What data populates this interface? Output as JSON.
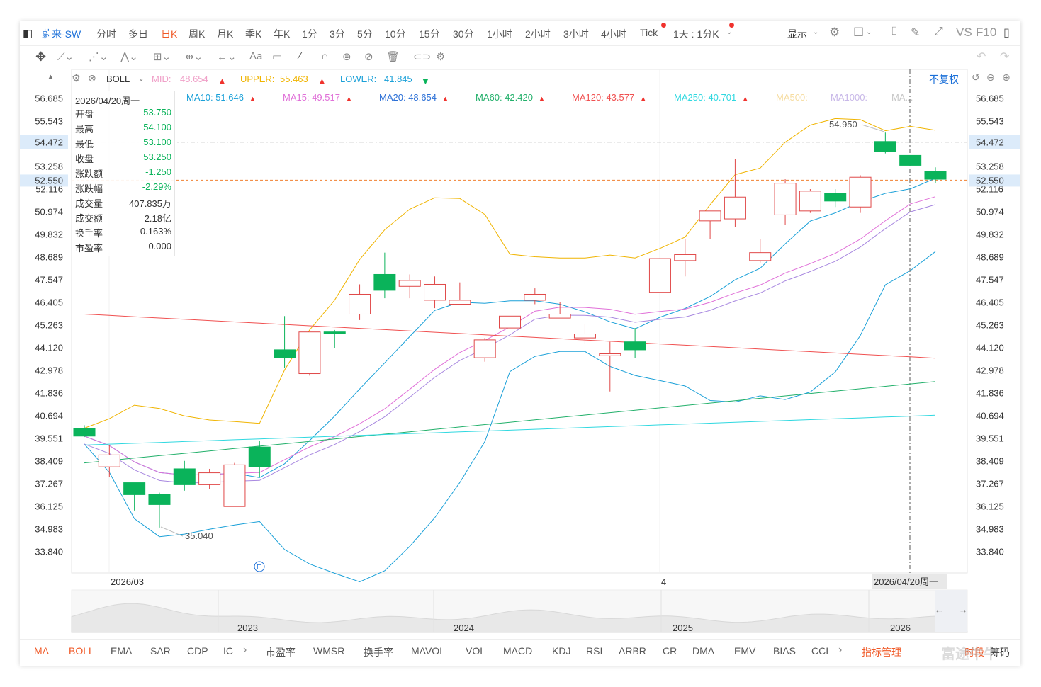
{
  "toolbar": {
    "stock_name": "蔚来-SW",
    "tabs": [
      "分时",
      "多日",
      "日K",
      "周K",
      "月K",
      "季K",
      "年K",
      "1分",
      "3分",
      "5分",
      "10分",
      "15分",
      "30分",
      "1小时",
      "2小时",
      "3小时",
      "4小时",
      "Tick"
    ],
    "active_tab": "日K",
    "range_select": "1天 : 1分K",
    "display_label": "显示",
    "vs_label": "VS",
    "f10_label": "F10"
  },
  "indicator_row": {
    "name": "BOLL",
    "mid_label": "MID:",
    "mid_value": "48.654",
    "upper_label": "UPPER:",
    "upper_value": "55.463",
    "lower_label": "LOWER:",
    "lower_value": "41.845",
    "adjust_label": "不复权"
  },
  "ma_legend": [
    {
      "label": "MA10:",
      "value": "51.646",
      "color": "#1aa0d8",
      "arrow": "up"
    },
    {
      "label": "MA15:",
      "value": "49.517",
      "color": "#e070d8",
      "arrow": "up"
    },
    {
      "label": "MA20:",
      "value": "48.654",
      "color": "#2b6fd6",
      "arrow": "up"
    },
    {
      "label": "MA60:",
      "value": "42.420",
      "color": "#23b06b",
      "arrow": "up"
    },
    {
      "label": "MA120:",
      "value": "43.577",
      "color": "#f05050",
      "arrow": "up"
    },
    {
      "label": "MA250:",
      "value": "40.701",
      "color": "#2fd8e0",
      "arrow": "up"
    },
    {
      "label": "MA500:",
      "value": "",
      "color": "#f6dca0",
      "arrow": ""
    },
    {
      "label": "MA1000:",
      "value": "",
      "color": "#c8b8e8",
      "arrow": ""
    },
    {
      "label": "MA...",
      "value": "",
      "color": "#c8c8c8",
      "arrow": ""
    }
  ],
  "info_panel": {
    "date": "2026/04/20周一",
    "rows": [
      {
        "k": "开盘",
        "v": "53.750",
        "c": "#0ab35a"
      },
      {
        "k": "最高",
        "v": "54.100",
        "c": "#0ab35a"
      },
      {
        "k": "最低",
        "v": "53.100",
        "c": "#0ab35a"
      },
      {
        "k": "收盘",
        "v": "53.250",
        "c": "#0ab35a"
      },
      {
        "k": "涨跌额",
        "v": "-1.250",
        "c": "#0ab35a"
      },
      {
        "k": "涨跌幅",
        "v": "-2.29%",
        "c": "#0ab35a"
      },
      {
        "k": "成交量",
        "v": "407.835万",
        "c": "#333333"
      },
      {
        "k": "成交额",
        "v": "2.18亿",
        "c": "#333333"
      },
      {
        "k": "换手率",
        "v": "0.163%",
        "c": "#333333"
      },
      {
        "k": "市盈率",
        "v": "0.000",
        "c": "#333333"
      }
    ]
  },
  "chart_data": {
    "type": "candlestick",
    "y_ticks": [
      "56.685",
      "55.543",
      "54.472",
      "53.258",
      "52.116",
      "50.974",
      "49.832",
      "48.689",
      "47.547",
      "46.405",
      "45.263",
      "44.120",
      "42.978",
      "41.836",
      "40.694",
      "39.551",
      "38.409",
      "37.267",
      "36.125",
      "34.983",
      "33.840"
    ],
    "ylim": [
      33.84,
      56.685
    ],
    "crosshair_value": "54.472",
    "last_price": "52.550",
    "x_labels": [
      "2026/03",
      "4"
    ],
    "crosshair_date": "2026/04/20周一",
    "annotations": [
      {
        "text": "54.950",
        "type": "high"
      },
      {
        "text": "35.040",
        "type": "low"
      }
    ],
    "candles": [
      {
        "o": 40.05,
        "h": 40.2,
        "c": 39.65,
        "l": 39.6
      },
      {
        "o": 38.1,
        "h": 39.2,
        "c": 38.7,
        "l": 37.6
      },
      {
        "o": 37.3,
        "h": 37.3,
        "c": 36.7,
        "l": 35.9
      },
      {
        "o": 36.7,
        "h": 36.8,
        "c": 36.2,
        "l": 35.04
      },
      {
        "o": 38.0,
        "h": 38.4,
        "c": 37.2,
        "l": 36.9
      },
      {
        "o": 37.2,
        "h": 38.0,
        "c": 37.8,
        "l": 37.0
      },
      {
        "o": 36.1,
        "h": 38.3,
        "c": 38.2,
        "l": 36.1
      },
      {
        "o": 39.1,
        "h": 39.4,
        "c": 38.1,
        "l": 37.6
      },
      {
        "o": 44.0,
        "h": 45.7,
        "c": 43.6,
        "l": 43.1
      },
      {
        "o": 42.8,
        "h": 44.9,
        "c": 44.9,
        "l": 42.7
      },
      {
        "o": 44.9,
        "h": 45.0,
        "c": 44.8,
        "l": 44.1
      },
      {
        "o": 45.8,
        "h": 47.3,
        "c": 46.8,
        "l": 45.5
      },
      {
        "o": 47.8,
        "h": 48.9,
        "c": 47.0,
        "l": 46.6
      },
      {
        "o": 47.2,
        "h": 47.8,
        "c": 47.5,
        "l": 46.6
      },
      {
        "o": 46.5,
        "h": 47.7,
        "c": 47.3,
        "l": 46.1
      },
      {
        "o": 46.3,
        "h": 47.4,
        "c": 46.5,
        "l": 46.3
      },
      {
        "o": 43.6,
        "h": 44.6,
        "c": 44.5,
        "l": 43.4
      },
      {
        "o": 45.1,
        "h": 46.1,
        "c": 45.7,
        "l": 44.7
      },
      {
        "o": 46.5,
        "h": 47.1,
        "c": 46.8,
        "l": 46.3
      },
      {
        "o": 45.6,
        "h": 46.4,
        "c": 45.8,
        "l": 45.6
      },
      {
        "o": 44.6,
        "h": 45.3,
        "c": 44.8,
        "l": 44.3
      },
      {
        "o": 43.7,
        "h": 44.4,
        "c": 43.8,
        "l": 41.9
      },
      {
        "o": 44.4,
        "h": 45.1,
        "c": 44.0,
        "l": 43.6
      },
      {
        "o": 46.9,
        "h": 48.6,
        "c": 48.6,
        "l": 46.9
      },
      {
        "o": 48.5,
        "h": 49.6,
        "c": 48.8,
        "l": 47.7
      },
      {
        "o": 50.5,
        "h": 51.0,
        "c": 51.0,
        "l": 49.6
      },
      {
        "o": 50.6,
        "h": 53.6,
        "c": 51.7,
        "l": 50.2
      },
      {
        "o": 48.5,
        "h": 49.6,
        "c": 48.9,
        "l": 48.4
      },
      {
        "o": 50.8,
        "h": 52.6,
        "c": 52.4,
        "l": 50.3
      },
      {
        "o": 51.0,
        "h": 52.1,
        "c": 52.0,
        "l": 50.9
      },
      {
        "o": 51.9,
        "h": 52.1,
        "c": 51.5,
        "l": 51.2
      },
      {
        "o": 51.2,
        "h": 52.8,
        "c": 52.7,
        "l": 50.9
      },
      {
        "o": 54.5,
        "h": 54.95,
        "c": 54.0,
        "l": 53.9
      },
      {
        "o": 53.8,
        "h": 53.8,
        "c": 53.3,
        "l": 53.3
      },
      {
        "o": 53.0,
        "h": 53.2,
        "c": 52.6,
        "l": 52.4
      }
    ]
  },
  "navigator": {
    "year_labels": [
      "2023",
      "2024",
      "2025",
      "2026"
    ]
  },
  "bottom_tabs": [
    "MA",
    "BOLL",
    "EMA",
    "SAR",
    "CDP",
    "IC",
    "市盈率",
    "WMSR",
    "换手率",
    "MAVOL",
    "VOL",
    "MACD",
    "KDJ",
    "RSI",
    "ARBR",
    "CR",
    "DMA",
    "EMV",
    "BIAS",
    "CCI"
  ],
  "bottom_right": {
    "manage": "指标管理",
    "timeseg": "时段",
    "chips": "筹码"
  },
  "watermark": "富途牛牛"
}
